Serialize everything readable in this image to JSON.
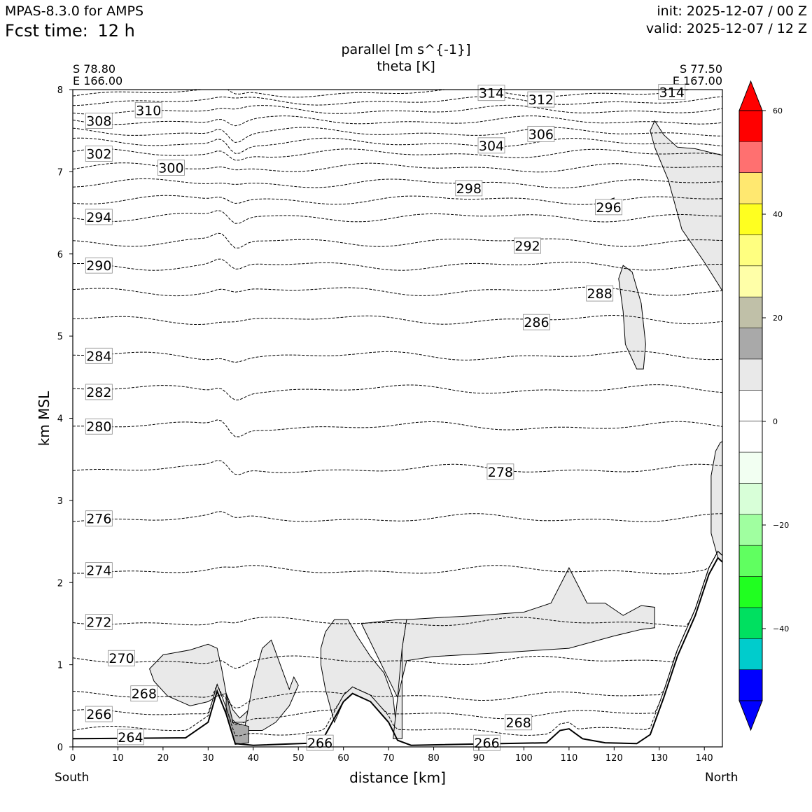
{
  "header": {
    "model": "MPAS-8.3.0 for AMPS",
    "fcst_label": "Fcst time:",
    "fcst_value": "12 h",
    "init": "init: 2025-12-07 / 00 Z",
    "valid": "valid: 2025-12-07 / 12 Z"
  },
  "corners": {
    "left_lat": "S 78.80",
    "left_lon": "E 166.00",
    "right_lat": "S 77.50",
    "right_lon": "E 167.00"
  },
  "direction": {
    "left": "South",
    "right": "North"
  },
  "chart_data": {
    "type": "cross-section contour",
    "title": "parallel [m s^{-1}]",
    "subtitle": "theta [K]",
    "xlabel": "distance [km]",
    "ylabel": "km MSL",
    "xlim": [
      0,
      144
    ],
    "ylim": [
      0,
      8
    ],
    "xticks": [
      "0",
      "10",
      "20",
      "30",
      "40",
      "50",
      "60",
      "70",
      "80",
      "90",
      "100",
      "110",
      "120",
      "130",
      "140"
    ],
    "yticks": [
      "0",
      "1",
      "2",
      "3",
      "4",
      "5",
      "6",
      "7",
      "8"
    ],
    "colorbar": {
      "levels": [
        -60,
        -50,
        -40,
        -30,
        -20,
        -10,
        -5,
        0,
        5,
        10,
        20,
        30,
        40,
        50,
        60
      ],
      "ticks": [
        "60",
        "40",
        "20",
        "0",
        "−20",
        "−40"
      ],
      "colors": [
        "#0000ff",
        "#00cccc",
        "#00e060",
        "#20ff20",
        "#60ff60",
        "#a0ffa0",
        "#d8ffd8",
        "#f2fff2",
        "#ffffff",
        "#ffffff",
        "#e8e8e8",
        "#a9a9a9",
        "#c0c0a8",
        "#ffffa8",
        "#ffff80",
        "#ffff20",
        "#ffe870",
        "#ff7070",
        "#ff0000"
      ],
      "extend": "both"
    },
    "theta_contours": [
      {
        "label": "264",
        "base": 0.2
      },
      {
        "label": "266",
        "base": 0.4
      },
      {
        "label": "268",
        "base": 0.62
      },
      {
        "label": "270",
        "base": 1.05
      },
      {
        "label": "272",
        "base": 1.52
      },
      {
        "label": "274",
        "base": 2.15
      },
      {
        "label": "276",
        "base": 2.78
      },
      {
        "label": "278",
        "base": 3.38
      },
      {
        "label": "280",
        "base": 3.9
      },
      {
        "label": "282",
        "base": 4.35
      },
      {
        "label": "284",
        "base": 4.76
      },
      {
        "label": "286",
        "base": 5.2
      },
      {
        "label": "288",
        "base": 5.55
      },
      {
        "label": "290",
        "base": 5.86
      },
      {
        "label": "292",
        "base": 6.15
      },
      {
        "label": "294",
        "base": 6.45
      },
      {
        "label": "296",
        "base": 6.66
      },
      {
        "label": "298",
        "base": 6.86
      },
      {
        "label": "300",
        "base": 7.05
      },
      {
        "label": "302",
        "base": 7.22
      },
      {
        "label": "304",
        "base": 7.35
      },
      {
        "label": "306",
        "base": 7.48
      },
      {
        "label": "308",
        "base": 7.62
      },
      {
        "label": "310",
        "base": 7.75
      },
      {
        "label": "312",
        "base": 7.86
      },
      {
        "label": "314",
        "base": 7.96
      }
    ],
    "contour_labels": [
      {
        "text": "308",
        "x": 3,
        "y": 7.62
      },
      {
        "text": "310",
        "x": 14,
        "y": 7.75
      },
      {
        "text": "302",
        "x": 3,
        "y": 7.22
      },
      {
        "text": "300",
        "x": 19,
        "y": 7.05
      },
      {
        "text": "294",
        "x": 3,
        "y": 6.45
      },
      {
        "text": "290",
        "x": 3,
        "y": 5.86
      },
      {
        "text": "284",
        "x": 3,
        "y": 4.76
      },
      {
        "text": "282",
        "x": 3,
        "y": 4.32
      },
      {
        "text": "280",
        "x": 3,
        "y": 3.9
      },
      {
        "text": "276",
        "x": 3,
        "y": 2.78
      },
      {
        "text": "274",
        "x": 3,
        "y": 2.15
      },
      {
        "text": "272",
        "x": 3,
        "y": 1.52
      },
      {
        "text": "270",
        "x": 8,
        "y": 1.08
      },
      {
        "text": "268",
        "x": 13,
        "y": 0.65
      },
      {
        "text": "266",
        "x": 3,
        "y": 0.4
      },
      {
        "text": "264",
        "x": 10,
        "y": 0.12
      },
      {
        "text": "266",
        "x": 52,
        "y": 0.05
      },
      {
        "text": "266",
        "x": 89,
        "y": 0.05
      },
      {
        "text": "268",
        "x": 96,
        "y": 0.3
      },
      {
        "text": "278",
        "x": 92,
        "y": 3.35
      },
      {
        "text": "286",
        "x": 100,
        "y": 5.17
      },
      {
        "text": "288",
        "x": 114,
        "y": 5.52
      },
      {
        "text": "292",
        "x": 98,
        "y": 6.1
      },
      {
        "text": "296",
        "x": 116,
        "y": 6.57
      },
      {
        "text": "298",
        "x": 85,
        "y": 6.8
      },
      {
        "text": "304",
        "x": 90,
        "y": 7.32
      },
      {
        "text": "306",
        "x": 101,
        "y": 7.46
      },
      {
        "text": "312",
        "x": 101,
        "y": 7.88
      },
      {
        "text": "314",
        "x": 90,
        "y": 7.96
      },
      {
        "text": "314",
        "x": 130,
        "y": 7.97
      }
    ],
    "shaded_regions": [
      {
        "category": "5 to 10",
        "color": "#e9e9e9"
      },
      {
        "category": "10 to 15",
        "color": "#aaaaaa"
      }
    ],
    "terrain": [
      [
        0,
        0.1
      ],
      [
        25,
        0.11
      ],
      [
        30,
        0.3
      ],
      [
        32,
        0.68
      ],
      [
        34,
        0.4
      ],
      [
        36,
        0.04
      ],
      [
        40,
        0.02
      ],
      [
        55,
        0.05
      ],
      [
        60,
        0.55
      ],
      [
        62,
        0.65
      ],
      [
        66,
        0.55
      ],
      [
        70,
        0.3
      ],
      [
        72,
        0.08
      ],
      [
        75,
        0.02
      ],
      [
        105,
        0.05
      ],
      [
        108,
        0.2
      ],
      [
        110,
        0.22
      ],
      [
        113,
        0.1
      ],
      [
        118,
        0.05
      ],
      [
        125,
        0.04
      ],
      [
        128,
        0.15
      ],
      [
        131,
        0.6
      ],
      [
        134,
        1.1
      ],
      [
        138,
        1.6
      ],
      [
        141,
        2.1
      ],
      [
        143,
        2.3
      ],
      [
        144,
        2.25
      ]
    ]
  }
}
